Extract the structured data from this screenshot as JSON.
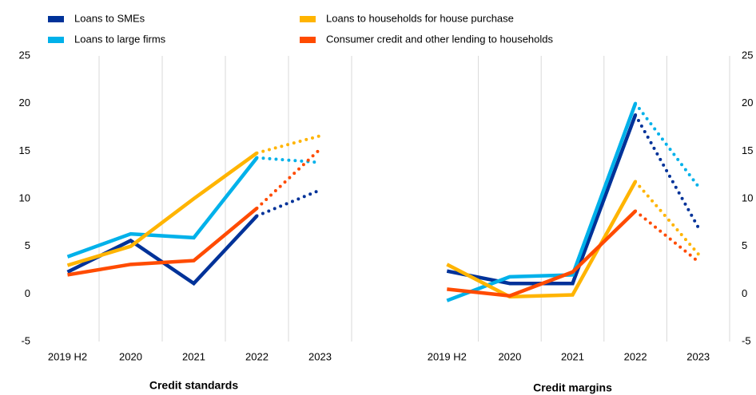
{
  "chart_data": [
    {
      "type": "line",
      "title": "Credit standards",
      "categories": [
        "2019 H2",
        "2020",
        "2021",
        "2022",
        "2023"
      ],
      "ylim": [
        -5,
        25
      ],
      "yticks": [
        -5,
        0,
        5,
        10,
        15,
        20,
        25
      ],
      "grid": "x",
      "dotted_last": true,
      "series": [
        {
          "name": "Loans to SMEs",
          "color": "#003299",
          "values": [
            2.3,
            5.6,
            1.1,
            8.2,
            10.9
          ]
        },
        {
          "name": "Loans to large firms",
          "color": "#00b1ea",
          "values": [
            3.9,
            6.3,
            5.9,
            14.3,
            13.8
          ]
        },
        {
          "name": "Loans to households for house purchase",
          "color": "#ffb400",
          "values": [
            3.0,
            5.0,
            10.0,
            14.8,
            16.6
          ]
        },
        {
          "name": "Consumer credit and other lending to households",
          "color": "#ff4b00",
          "values": [
            2.0,
            3.1,
            3.5,
            9.0,
            15.2
          ]
        }
      ]
    },
    {
      "type": "line",
      "title": "Credit margins",
      "categories": [
        "2019 H2",
        "2020",
        "2021",
        "2022",
        "2023"
      ],
      "ylim": [
        -5,
        25
      ],
      "yticks": [
        -5,
        0,
        5,
        10,
        15,
        20,
        25
      ],
      "grid": "x",
      "dotted_last": true,
      "series": [
        {
          "values": [
            2.4,
            1.1,
            1.1,
            18.8,
            7.0
          ]
        },
        {
          "values": [
            -0.7,
            1.8,
            2.0,
            20.0,
            11.3
          ]
        },
        {
          "values": [
            3.1,
            -0.3,
            -0.1,
            11.8,
            4.2
          ]
        },
        {
          "values": [
            0.5,
            -0.2,
            2.3,
            8.7,
            3.4
          ]
        }
      ]
    }
  ]
}
